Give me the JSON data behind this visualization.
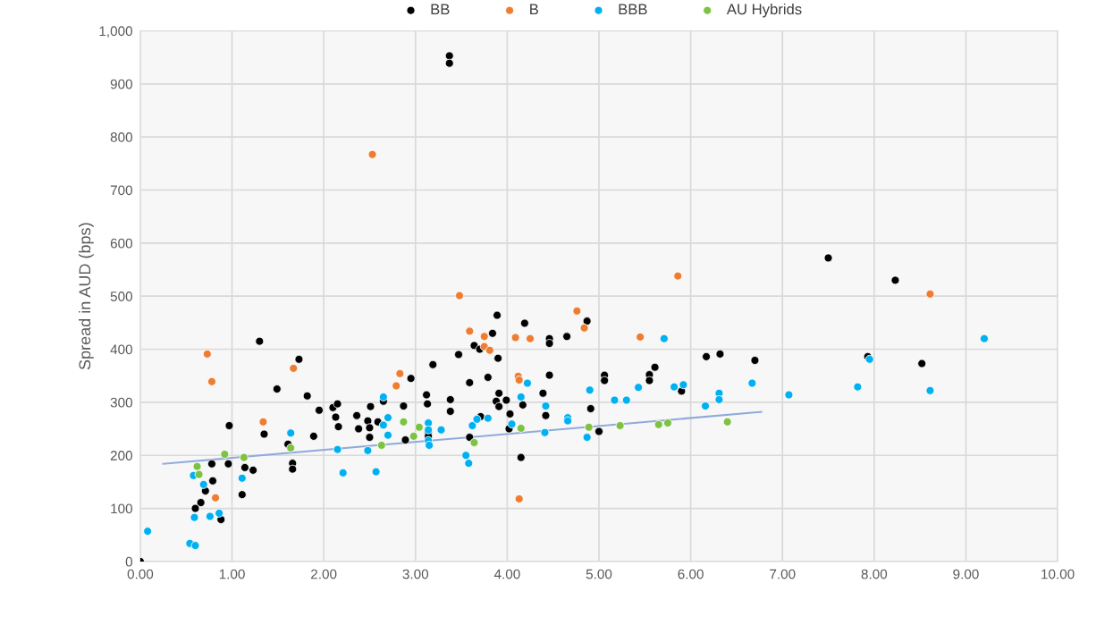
{
  "chart_data": {
    "type": "scatter",
    "ylabel": "Spread in AUD (bps)",
    "grid": true,
    "legend": "top",
    "marker": "circle",
    "xlim": [
      0,
      10
    ],
    "ylim": [
      0,
      1000
    ],
    "xticks": [
      {
        "value": 0,
        "label": "0.00"
      },
      {
        "value": 1,
        "label": "1.00"
      },
      {
        "value": 2,
        "label": "2.00"
      },
      {
        "value": 3,
        "label": "3.00"
      },
      {
        "value": 4,
        "label": "4.00"
      },
      {
        "value": 5,
        "label": "5.00"
      },
      {
        "value": 6,
        "label": "6.00"
      },
      {
        "value": 7,
        "label": "7.00"
      },
      {
        "value": 8,
        "label": "8.00"
      },
      {
        "value": 9,
        "label": "9.00"
      },
      {
        "value": 10,
        "label": "10.00"
      }
    ],
    "yticks": [
      0,
      100,
      200,
      300,
      400,
      500,
      600,
      700,
      800,
      900,
      {
        "value": 1000,
        "label": "1,000"
      }
    ],
    "series": [
      {
        "name": "BB",
        "color": "#000000",
        "x": [
          0.0,
          0.6,
          0.66,
          0.71,
          0.78,
          0.79,
          0.88,
          0.96,
          0.97,
          1.3,
          1.73,
          1.49,
          1.82,
          1.35,
          1.14,
          1.23,
          1.11,
          1.66,
          1.66,
          1.61,
          1.95,
          1.89,
          2.1,
          2.15,
          2.13,
          2.16,
          2.36,
          2.38,
          2.48,
          2.5,
          2.5,
          2.51,
          2.59,
          2.65,
          2.87,
          2.89,
          2.95,
          3.19,
          3.12,
          3.13,
          3.38,
          3.38,
          3.14,
          3.14,
          3.89,
          4.19,
          3.84,
          3.64,
          3.7,
          3.9,
          3.47,
          4.46,
          4.46,
          4.65,
          4.87,
          3.59,
          3.79,
          4.46,
          5.06,
          5.06,
          5.55,
          5.61,
          5.55,
          5.9,
          3.91,
          3.88,
          3.91,
          3.99,
          4.03,
          4.17,
          4.39,
          4.42,
          4.91,
          3.71,
          4.02,
          3.59,
          5.0,
          4.15,
          3.37,
          3.37,
          6.17,
          6.32,
          6.7,
          7.93,
          8.52,
          8.23,
          7.5
        ],
        "values": [
          0,
          100,
          111,
          133,
          184,
          152,
          79,
          184,
          256,
          415,
          381,
          325,
          312,
          240,
          177,
          172,
          126,
          185,
          174,
          221,
          285,
          236,
          290,
          297,
          272,
          254,
          275,
          250,
          265,
          252,
          234,
          292,
          263,
          302,
          293,
          229,
          345,
          371,
          314,
          297,
          305,
          283,
          244,
          236,
          464,
          449,
          430,
          407,
          400,
          383,
          390,
          420,
          411,
          424,
          453,
          337,
          347,
          351,
          351,
          341,
          352,
          366,
          341,
          321,
          317,
          302,
          292,
          304,
          278,
          295,
          317,
          275,
          288,
          273,
          250,
          234,
          245,
          196,
          953,
          939,
          386,
          391,
          379,
          386,
          373,
          530,
          572
        ]
      },
      {
        "name": "B",
        "color": "#ed7d31",
        "x": [
          0.73,
          0.78,
          0.82,
          1.34,
          1.67,
          2.83,
          2.79,
          3.48,
          3.59,
          3.75,
          3.75,
          3.81,
          4.09,
          4.25,
          4.12,
          4.13,
          4.76,
          4.84,
          5.45,
          5.86,
          4.13,
          2.53,
          8.61
        ],
        "values": [
          391,
          339,
          120,
          263,
          364,
          354,
          331,
          501,
          434,
          424,
          405,
          398,
          422,
          420,
          349,
          342,
          472,
          440,
          423,
          538,
          118,
          767,
          504
        ]
      },
      {
        "name": "BBB",
        "color": "#00b0f0",
        "x": [
          0.08,
          0.54,
          0.6,
          0.59,
          0.76,
          0.86,
          0.58,
          0.69,
          1.11,
          1.64,
          2.15,
          2.21,
          2.48,
          2.57,
          2.65,
          2.7,
          2.65,
          2.7,
          3.14,
          3.14,
          3.14,
          3.15,
          3.28,
          3.62,
          3.67,
          3.79,
          3.55,
          3.58,
          4.05,
          4.15,
          4.22,
          4.42,
          4.41,
          4.66,
          4.66,
          4.9,
          4.87,
          5.17,
          5.3,
          5.43,
          5.71,
          5.82,
          5.92,
          6.16,
          6.31,
          6.31,
          6.67,
          7.07,
          7.82,
          7.95,
          8.61,
          9.2
        ],
        "values": [
          57,
          34,
          30,
          83,
          85,
          91,
          162,
          145,
          157,
          242,
          211,
          167,
          209,
          169,
          310,
          271,
          257,
          238,
          261,
          248,
          228,
          219,
          248,
          256,
          268,
          270,
          200,
          185,
          259,
          310,
          336,
          293,
          243,
          271,
          265,
          323,
          234,
          304,
          304,
          328,
          420,
          329,
          333,
          293,
          317,
          305,
          336,
          314,
          329,
          381,
          322,
          420
        ]
      },
      {
        "name": "AU Hybrids",
        "color": "#7dc242",
        "x": [
          0.62,
          0.64,
          0.92,
          1.13,
          1.64,
          2.63,
          2.87,
          2.98,
          3.04,
          3.64,
          4.15,
          4.89,
          5.23,
          5.65,
          5.75,
          6.4
        ],
        "values": [
          179,
          164,
          202,
          196,
          214,
          219,
          263,
          236,
          253,
          224,
          251,
          253,
          256,
          258,
          261,
          263
        ]
      },
      {
        "type": "line",
        "marker": "none",
        "color": "#8faadc",
        "x": [
          0.25,
          6.77
        ],
        "values": [
          184,
          282
        ]
      }
    ]
  }
}
